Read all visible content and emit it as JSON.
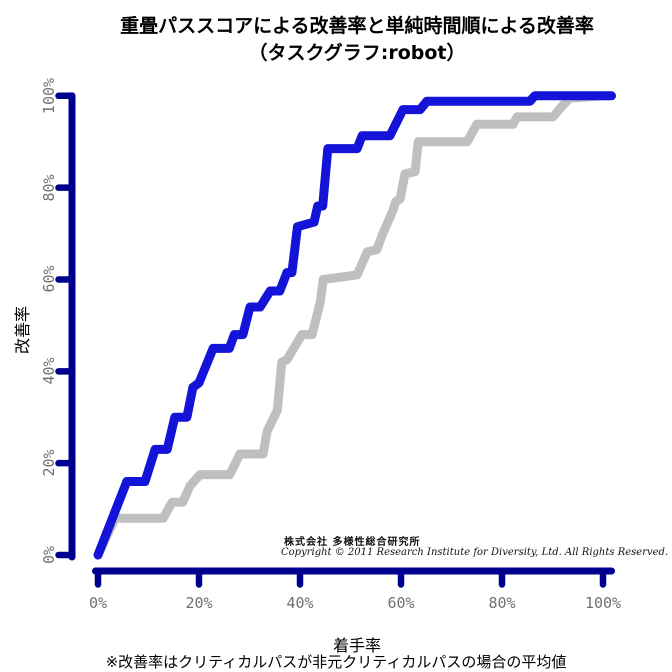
{
  "title": {
    "line1": "重畳パススコアによる改善率と単純時間順による改善率",
    "line2": "（タスクグラフ:robot）"
  },
  "watermark": {
    "line1": "株式会社 多様性総合研究所",
    "line2": "Copyright © 2011 Research Institute for Diversity, Ltd. All Rights Reserved."
  },
  "footnote": "※改善率はクリティカルパスが非元クリティカルパスの場合の平均値",
  "colors": {
    "axis": "#000090",
    "series_score": "#1414d8",
    "series_time": "#bfbfbf",
    "tick_label": "#707070"
  },
  "chart_data": {
    "type": "line",
    "title": "重畳パススコアによる改善率と単純時間順による改善率（タスクグラフ:robot）",
    "xlabel": "着手率",
    "ylabel": "改善率",
    "xlim": [
      0,
      100
    ],
    "ylim": [
      0,
      100
    ],
    "grid": false,
    "legend": "none",
    "x_tick_values": [
      0,
      20,
      40,
      60,
      80,
      100
    ],
    "x_tick_labels": [
      "0%",
      "20%",
      "40%",
      "60%",
      "80%",
      "100%"
    ],
    "y_tick_values": [
      0,
      20,
      40,
      60,
      80,
      100
    ],
    "y_tick_labels": [
      "0%",
      "20%",
      "40%",
      "60%",
      "80%",
      "100%"
    ],
    "series": [
      {
        "name": "単純時間順による改善率",
        "color": "#bfbfbf",
        "points": [
          [
            0,
            0
          ],
          [
            3.4,
            8
          ],
          [
            12.9,
            8
          ],
          [
            14.7,
            11.5
          ],
          [
            16.8,
            11.5
          ],
          [
            18.2,
            15
          ],
          [
            20.2,
            17.5
          ],
          [
            26.1,
            17.5
          ],
          [
            28.1,
            22
          ],
          [
            32.7,
            22
          ],
          [
            33.5,
            27
          ],
          [
            35.5,
            31.5
          ],
          [
            36.4,
            42
          ],
          [
            37.4,
            42.5
          ],
          [
            40.4,
            48
          ],
          [
            42.4,
            48
          ],
          [
            44,
            55
          ],
          [
            44.6,
            60
          ],
          [
            51.3,
            61
          ],
          [
            53.3,
            66
          ],
          [
            55.2,
            66.5
          ],
          [
            56.4,
            70
          ],
          [
            58.4,
            75
          ],
          [
            59,
            77
          ],
          [
            59.8,
            77.5
          ],
          [
            60.8,
            83
          ],
          [
            62.8,
            83.5
          ],
          [
            63.4,
            90
          ],
          [
            73.1,
            90
          ],
          [
            75,
            93.8
          ],
          [
            82.2,
            93.8
          ],
          [
            83,
            95.4
          ],
          [
            90.1,
            95.4
          ],
          [
            92.1,
            98
          ],
          [
            93.5,
            99.5
          ],
          [
            100,
            100
          ]
        ]
      },
      {
        "name": "重畳パススコアによる改善率",
        "color": "#1414d8",
        "points": [
          [
            0,
            0
          ],
          [
            5.7,
            16
          ],
          [
            9.3,
            16
          ],
          [
            11.3,
            23
          ],
          [
            13.7,
            23
          ],
          [
            15.2,
            30
          ],
          [
            17.6,
            30
          ],
          [
            18.8,
            36.5
          ],
          [
            20,
            37.5
          ],
          [
            22.8,
            45
          ],
          [
            26,
            45
          ],
          [
            27,
            48
          ],
          [
            28.7,
            48
          ],
          [
            30.1,
            54
          ],
          [
            32.1,
            54
          ],
          [
            34.1,
            57.5
          ],
          [
            36,
            57.5
          ],
          [
            37.4,
            61.5
          ],
          [
            38.4,
            61.5
          ],
          [
            39.5,
            71.5
          ],
          [
            42.8,
            72.5
          ],
          [
            43.5,
            76
          ],
          [
            44.5,
            76
          ],
          [
            45.5,
            88.5
          ],
          [
            51.3,
            88.5
          ],
          [
            52.3,
            91.3
          ],
          [
            57.8,
            91.3
          ],
          [
            60.4,
            97
          ],
          [
            63.8,
            97
          ],
          [
            65.1,
            98.8
          ],
          [
            85.5,
            98.8
          ],
          [
            86.5,
            100
          ],
          [
            100,
            100
          ]
        ]
      }
    ]
  }
}
